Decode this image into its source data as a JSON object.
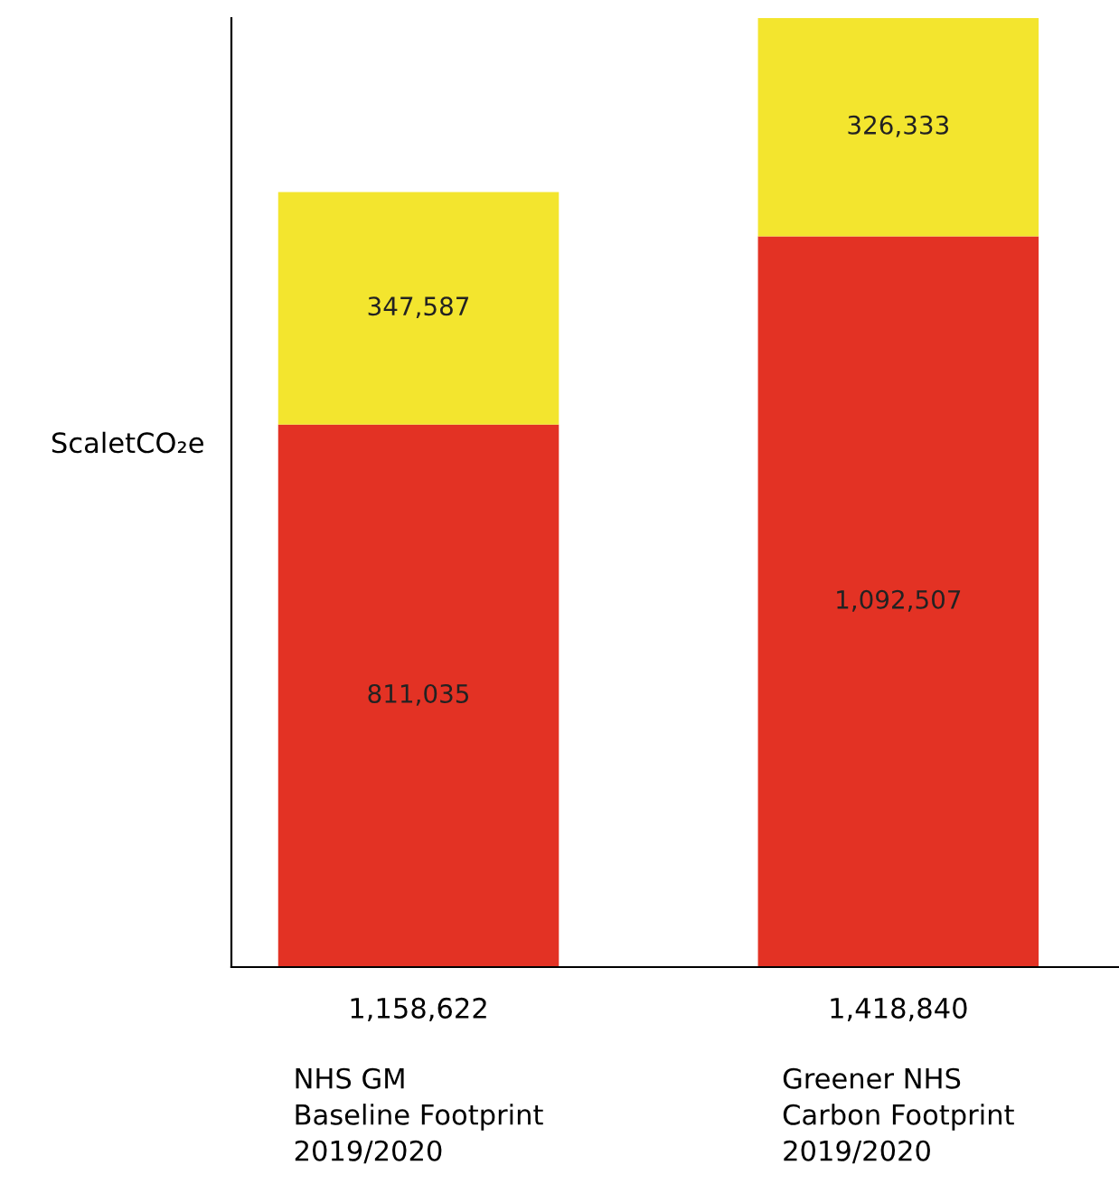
{
  "chart_data": {
    "type": "bar",
    "stacked": true,
    "ylabel": "ScaletCO₂e",
    "categories": [
      "NHS GM\nBaseline Footprint\n2019/2020",
      "Greener NHS\nCarbon Footprint\n2019/2020"
    ],
    "series": [
      {
        "color": "#e33224",
        "values": [
          811035,
          1092507
        ],
        "value_labels": [
          "811,035",
          "1,092,507"
        ]
      },
      {
        "color": "#f3e52e",
        "values": [
          347587,
          326333
        ],
        "value_labels": [
          "347,587",
          "326,333"
        ]
      }
    ],
    "totals": [
      "1,158,622",
      "1,418,840"
    ],
    "grid": false,
    "legend": false
  }
}
